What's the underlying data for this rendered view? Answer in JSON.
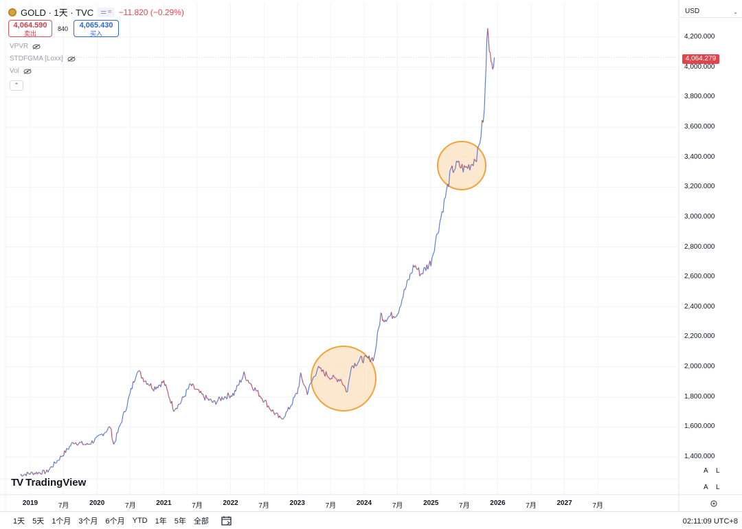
{
  "header": {
    "symbol_title": "GOLD · 1天 · TVC",
    "pill_left": "⚌",
    "pill_right": "≈",
    "change": "−11.820 (−0.29%)"
  },
  "quote": {
    "sell_value": "4,064.590",
    "sell_label": "卖出",
    "spread": "840",
    "buy_value": "4,065.430",
    "buy_label": "买入"
  },
  "indicators": [
    {
      "label": "VPVR"
    },
    {
      "label": "STDFGMA [Loxx]"
    },
    {
      "label": "Vol"
    }
  ],
  "currency": "USD",
  "last_price": "4,064.279",
  "y_ticks": [
    "4,200.000",
    "4,000.000",
    "3,800.000",
    "3,600.000",
    "3,400.000",
    "3,200.000",
    "3,000.000",
    "2,800.000",
    "2,600.000",
    "2,400.000",
    "2,200.000",
    "2,000.000",
    "1,800.000",
    "1,600.000",
    "1,400.000"
  ],
  "x_ticks": [
    {
      "label": "2019",
      "year": true
    },
    {
      "label": "7月",
      "year": false
    },
    {
      "label": "2020",
      "year": true
    },
    {
      "label": "7月",
      "year": false
    },
    {
      "label": "2021",
      "year": true
    },
    {
      "label": "7月",
      "year": false
    },
    {
      "label": "2022",
      "year": true
    },
    {
      "label": "7月",
      "year": false
    },
    {
      "label": "2023",
      "year": true
    },
    {
      "label": "7月",
      "year": false
    },
    {
      "label": "2024",
      "year": true
    },
    {
      "label": "7月",
      "year": false
    },
    {
      "label": "2025",
      "year": true
    },
    {
      "label": "7月",
      "year": false
    },
    {
      "label": "2026",
      "year": true
    },
    {
      "label": "7月",
      "year": false
    },
    {
      "label": "2027",
      "year": true
    },
    {
      "label": "7月",
      "year": false
    }
  ],
  "watermark": "TradingView",
  "scale_buttons": {
    "a": "A",
    "l": "L"
  },
  "ranges": [
    "1天",
    "5天",
    "1个月",
    "3个月",
    "6个月",
    "YTD",
    "1年",
    "5年",
    "全部"
  ],
  "clock": "02:11:09 UTC+8",
  "colors": {
    "up": "#5b7fd6",
    "down": "#c2556b",
    "highlight_circle": "#f0a43a",
    "highlight_fill": "#fbe0bf",
    "last_price_bg": "#e0454e"
  },
  "chart_data": {
    "type": "line",
    "title": "GOLD · 1天 · TVC",
    "xlabel": "",
    "ylabel": "",
    "ylim": [
      1300,
      4400
    ],
    "x": [
      2018.85,
      2019.0,
      2019.25,
      2019.5,
      2019.65,
      2019.85,
      2020.0,
      2020.2,
      2020.25,
      2020.45,
      2020.6,
      2020.7,
      2020.85,
      2021.0,
      2021.15,
      2021.25,
      2021.4,
      2021.6,
      2021.75,
      2021.9,
      2022.05,
      2022.2,
      2022.35,
      2022.5,
      2022.6,
      2022.75,
      2022.85,
      2023.0,
      2023.05,
      2023.15,
      2023.3,
      2023.4,
      2023.55,
      2023.65,
      2023.75,
      2023.8,
      2023.95,
      2024.0,
      2024.15,
      2024.25,
      2024.3,
      2024.5,
      2024.6,
      2024.75,
      2024.85,
      2025.0,
      2025.1,
      2025.2,
      2025.3,
      2025.4,
      2025.5,
      2025.6,
      2025.7,
      2025.8,
      2025.85,
      2025.9,
      2025.95
    ],
    "y": [
      1280,
      1290,
      1300,
      1420,
      1500,
      1480,
      1520,
      1600,
      1480,
      1750,
      1980,
      1920,
      1860,
      1900,
      1720,
      1760,
      1880,
      1800,
      1760,
      1800,
      1820,
      1950,
      1860,
      1780,
      1720,
      1650,
      1700,
      1830,
      1940,
      1830,
      1990,
      1960,
      1920,
      1920,
      1830,
      2000,
      2050,
      2050,
      2060,
      2350,
      2320,
      2360,
      2500,
      2680,
      2620,
      2700,
      2900,
      3100,
      3300,
      3350,
      3320,
      3350,
      3420,
      3700,
      4300,
      4000,
      4064
    ],
    "series": []
  }
}
